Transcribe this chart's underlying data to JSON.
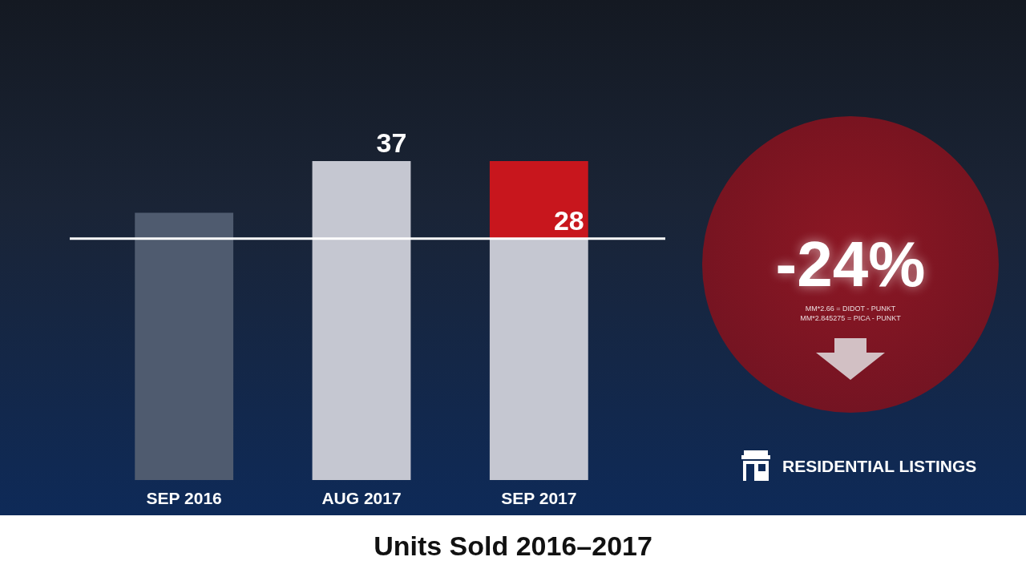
{
  "chart_data": {
    "type": "bar",
    "title": "Units Sold 2016–2017",
    "categories": [
      "SEP 2016",
      "AUG 2017",
      "SEP 2017"
    ],
    "stacked": true,
    "series": [
      {
        "colors": [
          "#4f5b6f",
          "#c5c7d1",
          "#c5c7d1"
        ],
        "values": [
          31,
          37,
          28
        ],
        "value_labels": [
          null,
          "37",
          "28"
        ]
      },
      {
        "color": "#c8161d",
        "values": [
          null,
          null,
          9
        ]
      }
    ],
    "ref_lines": [
      {
        "axis": "y",
        "value": 28,
        "color": "#ffffff"
      }
    ],
    "annotations": [
      "-24%",
      "MM*2.66 = DIDOT - PUNKT",
      "MM*2.845275 = PICA - PUNKT",
      "RESIDENTIAL LISTINGS"
    ],
    "tick_labels": "x",
    "grid": false,
    "legend": false
  }
}
